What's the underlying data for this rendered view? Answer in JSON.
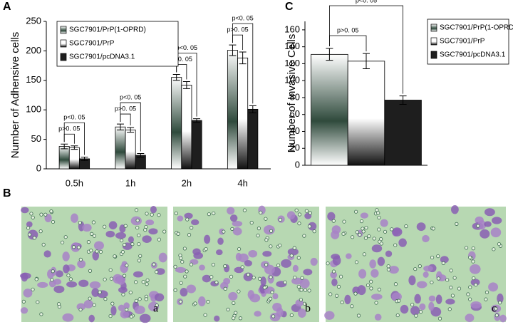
{
  "panels": {
    "a": "A",
    "b": "B",
    "c": "C"
  },
  "micrograph_labels": [
    "a",
    "b",
    "c"
  ],
  "chart_data": [
    {
      "type": "bar",
      "y_label": "Number of Adhensive cells",
      "categories": [
        "0.5h",
        "1h",
        "2h",
        "4h"
      ],
      "series": [
        {
          "name": "SGC7901/PrP(1-OPRD)",
          "color": "#2f4a3c",
          "values": [
            38,
            71,
            155,
            201
          ],
          "errors": [
            4,
            5,
            5,
            9
          ]
        },
        {
          "name": "SGC7901/PrP",
          "color": "#111111",
          "values": [
            36,
            66,
            142,
            188
          ],
          "errors": [
            3,
            4,
            6,
            10
          ]
        },
        {
          "name": "SGC7901/pcDNA3.1",
          "color": "#1e1e1e",
          "values": [
            17,
            23,
            82,
            101
          ],
          "errors": [
            3,
            3,
            3,
            6
          ]
        }
      ],
      "annotations": [
        "p>0. 05",
        "p<0. 05",
        "p>0. 05",
        "p<0. 05",
        "p>0. 05",
        "p<0. 05",
        "p>0. 05",
        "p<0. 05"
      ],
      "ylim": [
        0,
        250
      ],
      "yticks": [
        0,
        50,
        100,
        150,
        200,
        250
      ]
    },
    {
      "type": "bar",
      "y_label": "Number of Invasive Cells",
      "categories": [
        null
      ],
      "series": [
        {
          "name": "SGC7901/PrP(1-OPRD)",
          "color": "#2f4a3c",
          "values": [
            131
          ],
          "errors": [
            7
          ]
        },
        {
          "name": "SGC7901/PrP",
          "color": "#111111",
          "values": [
            123
          ],
          "errors": [
            9
          ]
        },
        {
          "name": "SGC7901/pcDNA3.1",
          "color": "#1e1e1e",
          "values": [
            77
          ],
          "errors": [
            5
          ]
        }
      ],
      "annotations": [
        "p>0. 05",
        "p<0. 05"
      ],
      "ylim": [
        0,
        170
      ],
      "yticks": [
        0,
        20,
        40,
        60,
        80,
        100,
        120,
        140,
        160
      ]
    }
  ]
}
